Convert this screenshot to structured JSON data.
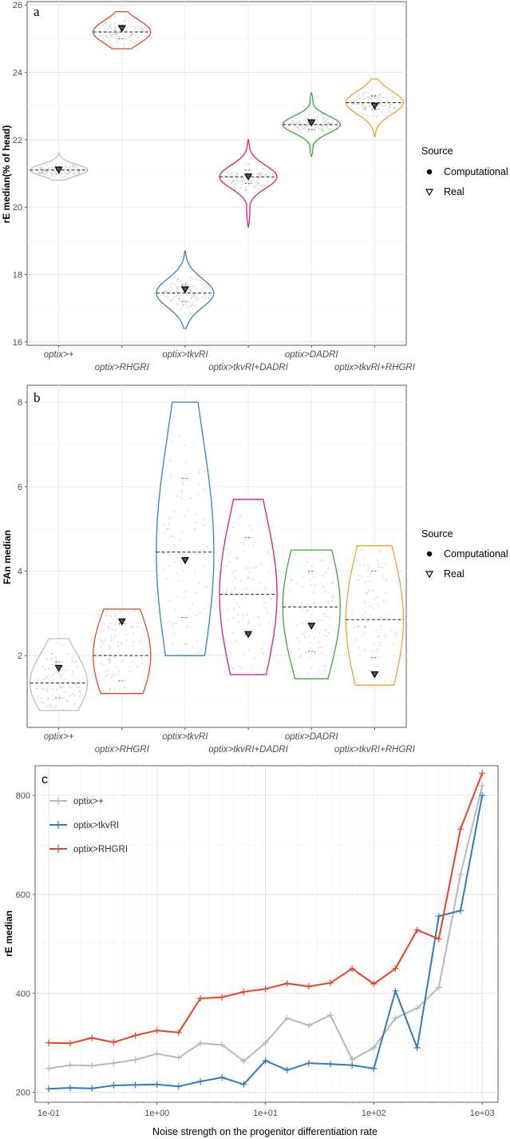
{
  "chart_data": [
    {
      "panel": "a",
      "type": "violin",
      "ylabel": "rE median(% of head)",
      "ylim": [
        15.9,
        26.1
      ],
      "yticks": [
        "16",
        "18",
        "20",
        "22",
        "24",
        "26"
      ],
      "yticks_values": [
        16,
        18,
        20,
        22,
        24,
        26
      ],
      "categories": [
        "optix>+",
        "optix>RHGRI",
        "optix>tkvRI",
        "optix>tkvRI+DADRI",
        "optix>DADRI",
        "optix>tkvRI+RHGRI"
      ],
      "colors": [
        "#bdbdbd",
        "#e8452c",
        "#3a7fc1",
        "#d81b78",
        "#3ca541",
        "#f2a02e"
      ],
      "series": [
        {
          "name": "optix>+",
          "min": 20.8,
          "q1": 21.0,
          "median": 21.1,
          "q3": 21.2,
          "max": 21.6,
          "real": 21.1
        },
        {
          "name": "optix>RHGRI",
          "min": 24.7,
          "q1": 25.0,
          "median": 25.2,
          "q3": 25.4,
          "max": 25.8,
          "real": 25.3
        },
        {
          "name": "optix>tkvRI",
          "min": 16.4,
          "q1": 17.2,
          "median": 17.45,
          "q3": 17.7,
          "max": 18.7,
          "real": 17.55
        },
        {
          "name": "optix>tkvRI+DADRI",
          "min": 19.4,
          "q1": 20.7,
          "median": 20.9,
          "q3": 21.1,
          "max": 22.0,
          "real": 20.9
        },
        {
          "name": "optix>DADRI",
          "min": 21.5,
          "q1": 22.3,
          "median": 22.45,
          "q3": 22.6,
          "max": 23.4,
          "real": 22.5
        },
        {
          "name": "optix>tkvRI+RHGRI",
          "min": 22.1,
          "q1": 22.9,
          "median": 23.1,
          "q3": 23.3,
          "max": 23.8,
          "real": 23.0
        }
      ],
      "legend": {
        "title": "Source",
        "items": [
          "Computational",
          "Real"
        ]
      }
    },
    {
      "panel": "b",
      "type": "violin",
      "ylabel": "FAn median",
      "ylim": [
        0.3,
        8.4
      ],
      "yticks": [
        "2",
        "4",
        "6",
        "8"
      ],
      "yticks_values": [
        2,
        4,
        6,
        8
      ],
      "categories": [
        "optix>+",
        "optix>RHGRI",
        "optix>tkvRI",
        "optix>tkvRI+DADRI",
        "optix>DADRI",
        "optix>tkvRI+RHGRI"
      ],
      "colors": [
        "#bdbdbd",
        "#e8452c",
        "#3a7fc1",
        "#d81b78",
        "#3ca541",
        "#f2a02e"
      ],
      "series": [
        {
          "name": "optix>+",
          "min": 0.7,
          "q1": 1.0,
          "median": 1.35,
          "q3": 1.85,
          "max": 2.4,
          "real": 1.7
        },
        {
          "name": "optix>RHGRI",
          "min": 1.1,
          "q1": 1.4,
          "median": 2.0,
          "q3": 2.75,
          "max": 3.1,
          "real": 2.8
        },
        {
          "name": "optix>tkvRI",
          "min": 2.0,
          "q1": 2.9,
          "median": 4.45,
          "q3": 6.2,
          "max": 8.0,
          "real": 4.25
        },
        {
          "name": "optix>tkvRI+DADRI",
          "min": 1.55,
          "q1": 2.5,
          "median": 3.45,
          "q3": 4.8,
          "max": 5.7,
          "real": 2.5
        },
        {
          "name": "optix>DADRI",
          "min": 1.45,
          "q1": 2.1,
          "median": 3.15,
          "q3": 4.0,
          "max": 4.5,
          "real": 2.7
        },
        {
          "name": "optix>tkvRI+RHGRI",
          "min": 1.3,
          "q1": 1.95,
          "median": 2.85,
          "q3": 4.0,
          "max": 4.6,
          "real": 1.55
        }
      ],
      "legend": {
        "title": "Source",
        "items": [
          "Computational",
          "Real"
        ]
      }
    },
    {
      "panel": "c",
      "type": "line",
      "xscale": "log",
      "xlabel": "Noise strength on the progenitor differentiation rate",
      "ylabel": "rE median",
      "xlim": [
        0.075,
        1400
      ],
      "ylim": [
        180,
        860
      ],
      "xticks": [
        "1e-01",
        "1e+00",
        "1e+01",
        "1e+02",
        "1e+03"
      ],
      "xticks_values": [
        0.1,
        1,
        10,
        100,
        1000
      ],
      "yticks": [
        "200",
        "400",
        "600",
        "800"
      ],
      "yticks_values": [
        200,
        400,
        600,
        800
      ],
      "x": [
        0.1,
        0.158,
        0.251,
        0.398,
        0.631,
        1.0,
        1.585,
        2.512,
        3.981,
        6.31,
        10.0,
        15.85,
        25.12,
        39.81,
        63.1,
        100,
        158.5,
        251.2,
        398.1,
        631,
        1000
      ],
      "series": [
        {
          "name": "optix>+",
          "color": "#b8b8b8",
          "values": [
            248,
            255,
            254,
            259,
            266,
            278,
            270,
            299,
            296,
            263,
            300,
            350,
            335,
            356,
            266,
            290,
            350,
            370,
            412,
            640,
            820
          ]
        },
        {
          "name": "optix>tkvRI",
          "color": "#2f7bbf",
          "values": [
            207,
            209,
            208,
            214,
            215,
            216,
            212,
            222,
            230,
            216,
            264,
            245,
            259,
            257,
            255,
            248,
            405,
            290,
            556,
            567,
            800
          ]
        },
        {
          "name": "optix>RHGRI",
          "color": "#e8412a",
          "values": [
            300,
            299,
            310,
            301,
            315,
            325,
            321,
            390,
            392,
            403,
            409,
            420,
            414,
            421,
            450,
            419,
            450,
            528,
            510,
            732,
            845
          ]
        }
      ]
    }
  ],
  "panel_labels": [
    "a",
    "b",
    "c"
  ]
}
